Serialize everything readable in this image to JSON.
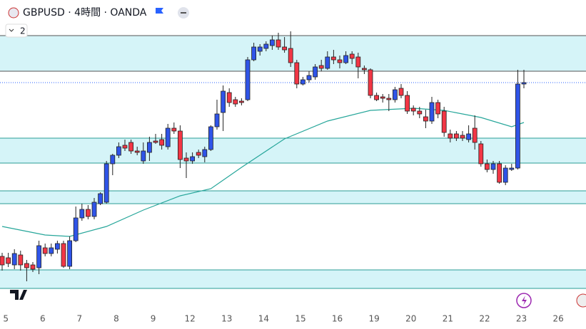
{
  "chart_data": {
    "type": "candlestick",
    "title": "GBPUSD · 4時間 · OANDA",
    "badge": "2",
    "x_labels": [
      "5",
      "6",
      "7",
      "8",
      "9",
      "12",
      "13",
      "14",
      "15",
      "16",
      "19",
      "20",
      "21",
      "22",
      "23",
      "26"
    ],
    "ylim": [
      0,
      430
    ],
    "up_color": "#2f54e8",
    "down_color": "#f23645",
    "open": [
      70,
      68,
      58,
      72,
      60,
      58,
      54,
      82,
      74,
      80,
      88,
      56,
      92,
      124,
      136,
      126,
      144,
      146,
      200,
      212,
      226,
      230,
      218,
      204,
      216,
      232,
      234,
      224,
      250,
      246,
      208,
      204,
      216,
      210,
      220,
      252,
      272,
      300,
      290,
      288,
      290,
      346,
      358,
      362,
      366,
      374,
      364,
      362,
      342,
      312,
      318,
      322,
      338,
      334,
      350,
      346,
      342,
      354,
      350,
      334,
      332,
      296,
      294,
      292,
      290,
      306,
      296,
      278,
      274,
      266,
      260,
      286,
      274,
      242,
      242,
      240,
      234,
      250,
      228,
      200,
      192,
      200,
      174,
      192,
      194,
      312
    ],
    "high": [
      75,
      75,
      80,
      78,
      65,
      62,
      92,
      88,
      88,
      92,
      92,
      98,
      140,
      144,
      142,
      152,
      160,
      204,
      214,
      230,
      234,
      234,
      224,
      230,
      238,
      242,
      242,
      256,
      258,
      254,
      216,
      216,
      220,
      224,
      254,
      290,
      310,
      306,
      294,
      292,
      350,
      370,
      368,
      372,
      380,
      384,
      378,
      386,
      346,
      322,
      330,
      340,
      346,
      358,
      360,
      352,
      358,
      358,
      356,
      338,
      334,
      300,
      298,
      298,
      308,
      312,
      302,
      282,
      280,
      276,
      294,
      290,
      280,
      248,
      246,
      246,
      254,
      268,
      232,
      206,
      204,
      204,
      198,
      200,
      332,
      332
    ],
    "low": [
      50,
      55,
      52,
      50,
      35,
      48,
      45,
      70,
      70,
      74,
      54,
      52,
      90,
      120,
      122,
      122,
      142,
      144,
      184,
      208,
      218,
      214,
      212,
      200,
      204,
      228,
      220,
      220,
      242,
      194,
      180,
      200,
      208,
      202,
      218,
      248,
      246,
      280,
      280,
      282,
      288,
      344,
      352,
      358,
      360,
      360,
      356,
      336,
      306,
      310,
      314,
      318,
      330,
      332,
      340,
      334,
      340,
      340,
      320,
      326,
      292,
      288,
      286,
      274,
      286,
      292,
      270,
      268,
      264,
      250,
      256,
      264,
      238,
      230,
      232,
      232,
      230,
      220,
      196,
      188,
      186,
      172,
      170,
      190,
      192,
      306
    ],
    "close": [
      58,
      60,
      74,
      58,
      54,
      52,
      85,
      74,
      82,
      88,
      56,
      92,
      124,
      136,
      126,
      146,
      158,
      200,
      212,
      224,
      222,
      218,
      216,
      218,
      230,
      230,
      226,
      250,
      246,
      206,
      204,
      210,
      212,
      220,
      252,
      270,
      302,
      286,
      284,
      286,
      346,
      364,
      364,
      368,
      374,
      364,
      360,
      342,
      312,
      318,
      324,
      336,
      334,
      350,
      346,
      342,
      352,
      348,
      336,
      332,
      296,
      290,
      292,
      290,
      304,
      296,
      274,
      274,
      270,
      260,
      286,
      270,
      244,
      236,
      236,
      236,
      242,
      230,
      200,
      192,
      200,
      174,
      194,
      194,
      312,
      314
    ],
    "ma": {
      "color": "#26a69a",
      "x": [
        0,
        7,
        11,
        17,
        23,
        29,
        34,
        39,
        46,
        53,
        60,
        67,
        72,
        78,
        83,
        85
      ],
      "values": [
        112,
        100,
        98,
        112,
        135,
        155,
        165,
        195,
        235,
        260,
        275,
        278,
        275,
        265,
        252,
        258
      ]
    },
    "zones": [
      {
        "from": 330,
        "to": 380,
        "border": "#555555"
      },
      {
        "from": 201,
        "to": 236,
        "border": "#2a9d96"
      },
      {
        "from": 144,
        "to": 162,
        "border": "#2a9d96"
      },
      {
        "from": 25,
        "to": 51,
        "border": "#2a9d96"
      }
    ],
    "zone_fill": "#d5f4f8",
    "last_price": 314
  }
}
